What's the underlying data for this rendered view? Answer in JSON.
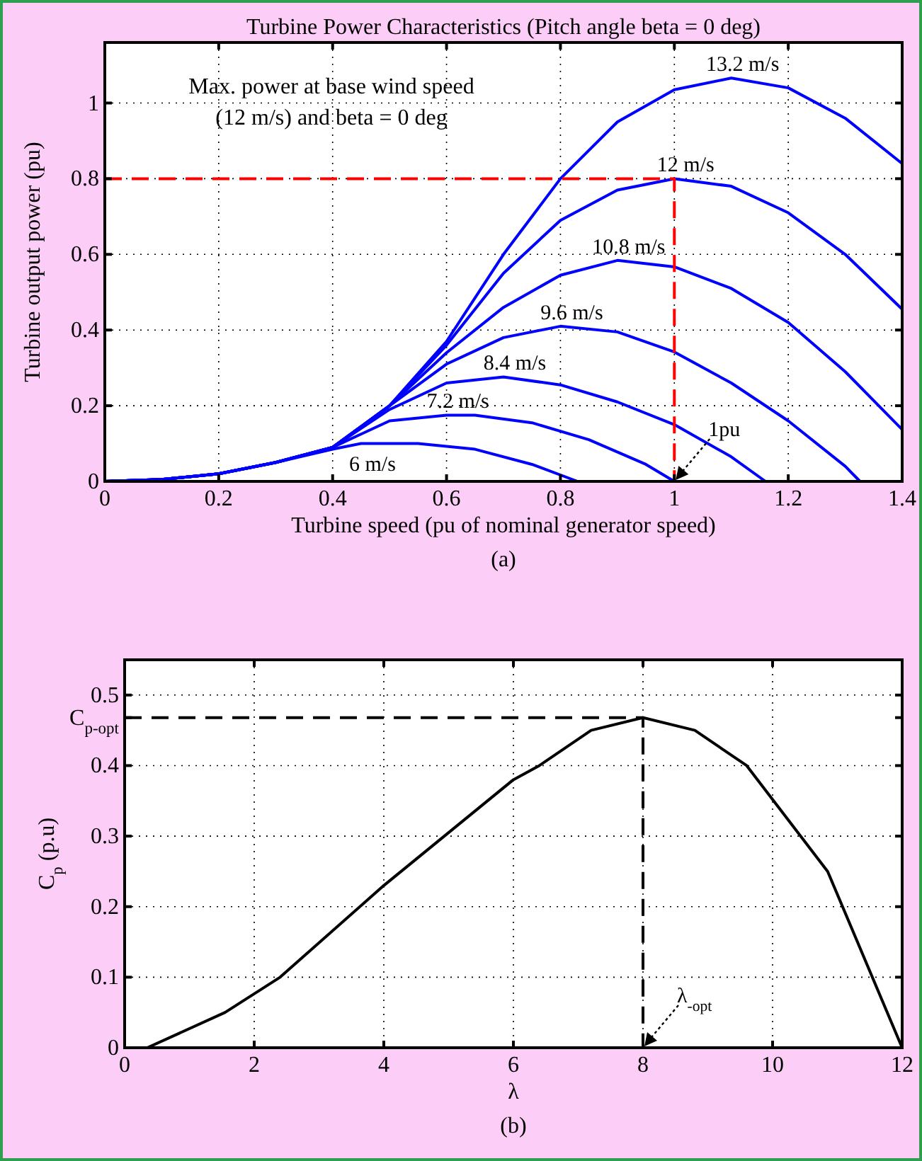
{
  "chart_data": [
    {
      "type": "line",
      "title": "Turbine Power Characteristics (Pitch angle beta = 0 deg)",
      "xlabel": "Turbine speed (pu of nominal generator speed)",
      "ylabel": "Turbine output power (pu)",
      "xlim": [
        0,
        1.4
      ],
      "ylim": [
        0,
        1.16
      ],
      "xticks": [
        0,
        0.2,
        0.4,
        0.6,
        0.8,
        1,
        1.2,
        1.4
      ],
      "yticks": [
        0,
        0.2,
        0.4,
        0.6,
        0.8,
        1
      ],
      "grid": true,
      "marker": "none",
      "line_style": "solid",
      "series": [
        {
          "name": "6 m/s",
          "color": "#0000ff",
          "x": [
            0,
            0.1,
            0.2,
            0.3,
            0.4,
            0.45,
            0.55,
            0.65,
            0.75,
            0.83
          ],
          "values": [
            0,
            0.005,
            0.02,
            0.05,
            0.085,
            0.1,
            0.1,
            0.085,
            0.045,
            0
          ]
        },
        {
          "name": "7.2 m/s",
          "color": "#0000ff",
          "x": [
            0,
            0.1,
            0.2,
            0.3,
            0.4,
            0.5,
            0.6,
            0.65,
            0.75,
            0.85,
            0.95,
            1
          ],
          "values": [
            0,
            0.005,
            0.02,
            0.05,
            0.09,
            0.16,
            0.175,
            0.175,
            0.155,
            0.11,
            0.045,
            0
          ]
        },
        {
          "name": "8.4 m/s",
          "color": "#0000ff",
          "x": [
            0,
            0.1,
            0.2,
            0.3,
            0.4,
            0.5,
            0.6,
            0.7,
            0.8,
            0.9,
            1,
            1.1,
            1.16
          ],
          "values": [
            0,
            0.005,
            0.02,
            0.05,
            0.09,
            0.19,
            0.26,
            0.276,
            0.255,
            0.21,
            0.15,
            0.065,
            0
          ]
        },
        {
          "name": "9.6 m/s",
          "color": "#0000ff",
          "x": [
            0,
            0.1,
            0.2,
            0.3,
            0.4,
            0.5,
            0.6,
            0.7,
            0.8,
            0.9,
            1,
            1.1,
            1.2,
            1.3,
            1.326
          ],
          "values": [
            0,
            0.005,
            0.02,
            0.05,
            0.09,
            0.2,
            0.31,
            0.38,
            0.41,
            0.395,
            0.342,
            0.26,
            0.16,
            0.04,
            0
          ]
        },
        {
          "name": "10.8 m/s",
          "color": "#0000ff",
          "x": [
            0,
            0.1,
            0.2,
            0.3,
            0.4,
            0.5,
            0.6,
            0.7,
            0.8,
            0.9,
            1,
            1.1,
            1.2,
            1.3,
            1.4
          ],
          "values": [
            0,
            0.005,
            0.02,
            0.05,
            0.09,
            0.2,
            0.34,
            0.46,
            0.545,
            0.584,
            0.567,
            0.51,
            0.42,
            0.29,
            0.137
          ]
        },
        {
          "name": "12 m/s",
          "color": "#0000ff",
          "x": [
            0,
            0.1,
            0.2,
            0.3,
            0.4,
            0.5,
            0.6,
            0.7,
            0.8,
            0.9,
            1,
            1.1,
            1.2,
            1.3,
            1.4
          ],
          "values": [
            0,
            0.005,
            0.02,
            0.05,
            0.09,
            0.2,
            0.36,
            0.55,
            0.69,
            0.77,
            0.8,
            0.78,
            0.71,
            0.6,
            0.455
          ]
        },
        {
          "name": "13.2 m/s",
          "color": "#0000ff",
          "x": [
            0,
            0.1,
            0.2,
            0.3,
            0.4,
            0.5,
            0.6,
            0.7,
            0.8,
            0.9,
            1,
            1.1,
            1.2,
            1.3,
            1.4
          ],
          "values": [
            0,
            0.005,
            0.02,
            0.05,
            0.09,
            0.2,
            0.37,
            0.6,
            0.8,
            0.95,
            1.035,
            1.066,
            1.04,
            0.96,
            0.84
          ]
        },
        {
          "color": "#ff0000",
          "line_style": "dashed",
          "x": [
            0,
            1,
            1
          ],
          "values": [
            0.8,
            0.8,
            0
          ]
        }
      ],
      "annotations": [
        "Max. power at base wind speed\n(12 m/s) and beta = 0 deg",
        {
          "text": "1pu",
          "x": 1,
          "y": 0
        },
        "(a)"
      ]
    },
    {
      "type": "line",
      "xlabel": "λ",
      "ylabel": "C$_{p}$ (p.u)",
      "xlim": [
        0,
        12
      ],
      "ylim": [
        0,
        0.55
      ],
      "xticks": [
        0,
        2,
        4,
        6,
        8,
        10,
        12
      ],
      "yticks": [
        0,
        0.1,
        0.2,
        0.3,
        0.4,
        {
          "value": 0.468,
          "label": "C$_{p-opt}$"
        },
        0.5
      ],
      "grid": true,
      "marker": "none",
      "line_style": "solid",
      "series": [
        {
          "color": "#000000",
          "x": [
            0.35,
            1.55,
            2.4,
            4,
            6,
            6.4,
            7.2,
            8,
            8.8,
            9.6,
            10.85,
            12
          ],
          "values": [
            0,
            0.05,
            0.1,
            0.23,
            0.38,
            0.4,
            0.45,
            0.468,
            0.45,
            0.4,
            0.25,
            0
          ]
        },
        {
          "color": "#000000",
          "line_style": "dashed",
          "x": [
            0,
            8,
            8
          ],
          "values": [
            0.468,
            0.468,
            0
          ]
        }
      ],
      "annotations": [
        {
          "text": "λ$_{-opt}$",
          "x": 8,
          "y": 0
        },
        "(b)"
      ]
    }
  ]
}
